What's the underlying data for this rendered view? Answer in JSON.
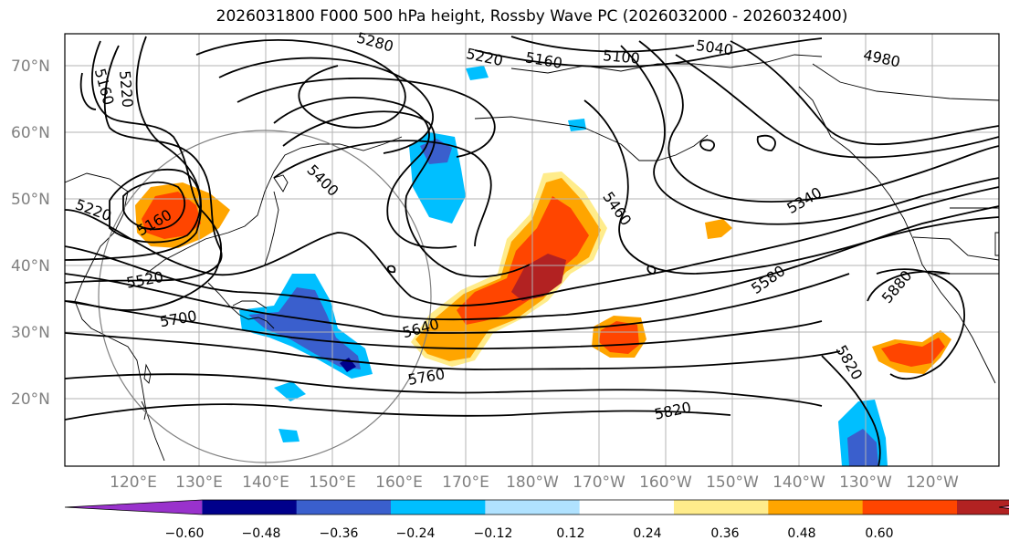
{
  "title": "2026031800 F000 500 hPa height, Rossby Wave PC (2026032000 - 2026032400)",
  "lat_labels": [
    "70°N",
    "60°N",
    "50°N",
    "40°N",
    "30°N",
    "20°N"
  ],
  "lon_labels": [
    "120°E",
    "130°E",
    "140°E",
    "150°E",
    "160°E",
    "170°E",
    "180°W",
    "170°W",
    "160°W",
    "150°W",
    "140°W",
    "130°W",
    "120°W"
  ],
  "contour_labels": [
    "5280",
    "5220",
    "5160",
    "5100",
    "5040",
    "4980",
    "5160",
    "5220",
    "5400",
    "5460",
    "5340",
    "5580",
    "5880",
    "5220",
    "5160",
    "5520",
    "5700",
    "5640",
    "5760",
    "5820",
    "5820"
  ],
  "colorbar": {
    "ticks": [
      "−0.60",
      "−0.48",
      "−0.36",
      "−0.24",
      "−0.12",
      "0.12",
      "0.24",
      "0.36",
      "0.48",
      "0.60"
    ],
    "colors": [
      "#9932cc",
      "#00008b",
      "#3a5fcd",
      "#00bfff",
      "#b0e2ff",
      "#ffffff",
      "#ffec8b",
      "#ffa500",
      "#ff4500",
      "#b22222",
      "#ff82ab"
    ]
  },
  "shading_colors": {
    "neg_light": "#b0e2ff",
    "neg_mid": "#00bfff",
    "neg_strong": "#3a5fcd",
    "neg_max": "#00008b",
    "pos_light": "#ffec8b",
    "pos_mid": "#ffa500",
    "pos_strong": "#ff4500",
    "pos_max": "#b22222"
  }
}
